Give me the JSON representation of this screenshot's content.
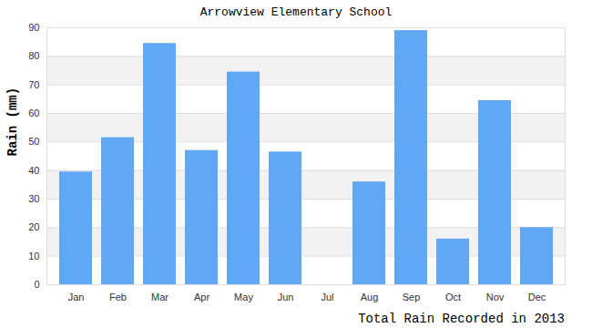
{
  "chart_data": {
    "type": "bar",
    "title": "Arrowview Elementary School",
    "caption": "Total Rain Recorded in 2013",
    "y_label": "Rain (mm)",
    "categories": [
      "Jan",
      "Feb",
      "Mar",
      "Apr",
      "May",
      "Jun",
      "Jul",
      "Aug",
      "Sep",
      "Oct",
      "Nov",
      "Dec"
    ],
    "values": [
      39.5,
      51.5,
      84.5,
      47,
      74.5,
      46.5,
      0,
      36,
      89,
      16,
      64.5,
      20
    ],
    "color": "#60a8f5",
    "ylim": [
      0,
      90
    ],
    "yticks": [
      0,
      10,
      20,
      30,
      40,
      50,
      60,
      70,
      80,
      90
    ],
    "grid": true
  }
}
